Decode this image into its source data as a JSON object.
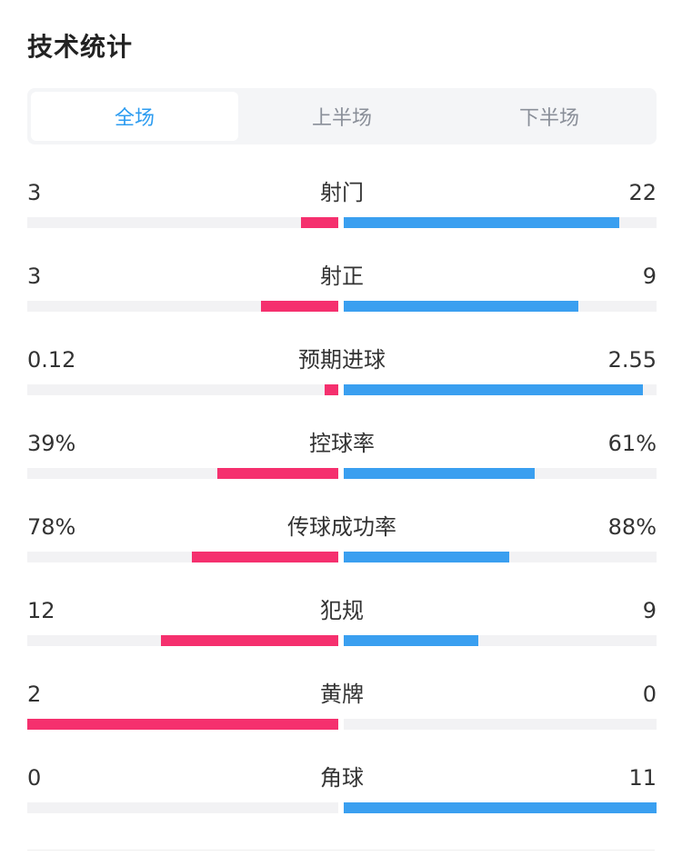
{
  "header": {
    "title": "技术统计"
  },
  "tabs": [
    {
      "label": "全场",
      "active": true
    },
    {
      "label": "上半场",
      "active": false
    },
    {
      "label": "下半场",
      "active": false
    }
  ],
  "colors": {
    "home": "#f5306e",
    "away": "#3a9ff0",
    "accent": "#2d9cf0",
    "track": "#f2f2f4"
  },
  "stats": [
    {
      "label": "射门",
      "home": "3",
      "away": "22",
      "home_share": 0.12,
      "away_share": 0.88
    },
    {
      "label": "射正",
      "home": "3",
      "away": "9",
      "home_share": 0.25,
      "away_share": 0.75
    },
    {
      "label": "预期进球",
      "home": "0.12",
      "away": "2.55",
      "home_share": 0.045,
      "away_share": 0.955
    },
    {
      "label": "控球率",
      "home": "39%",
      "away": "61%",
      "home_share": 0.39,
      "away_share": 0.61
    },
    {
      "label": "传球成功率",
      "home": "78%",
      "away": "88%",
      "home_share": 0.47,
      "away_share": 0.53
    },
    {
      "label": "犯规",
      "home": "12",
      "away": "9",
      "home_share": 0.57,
      "away_share": 0.43
    },
    {
      "label": "黄牌",
      "home": "2",
      "away": "0",
      "home_share": 1.0,
      "away_share": 0.0
    },
    {
      "label": "角球",
      "home": "0",
      "away": "11",
      "home_share": 0.0,
      "away_share": 1.0
    }
  ]
}
